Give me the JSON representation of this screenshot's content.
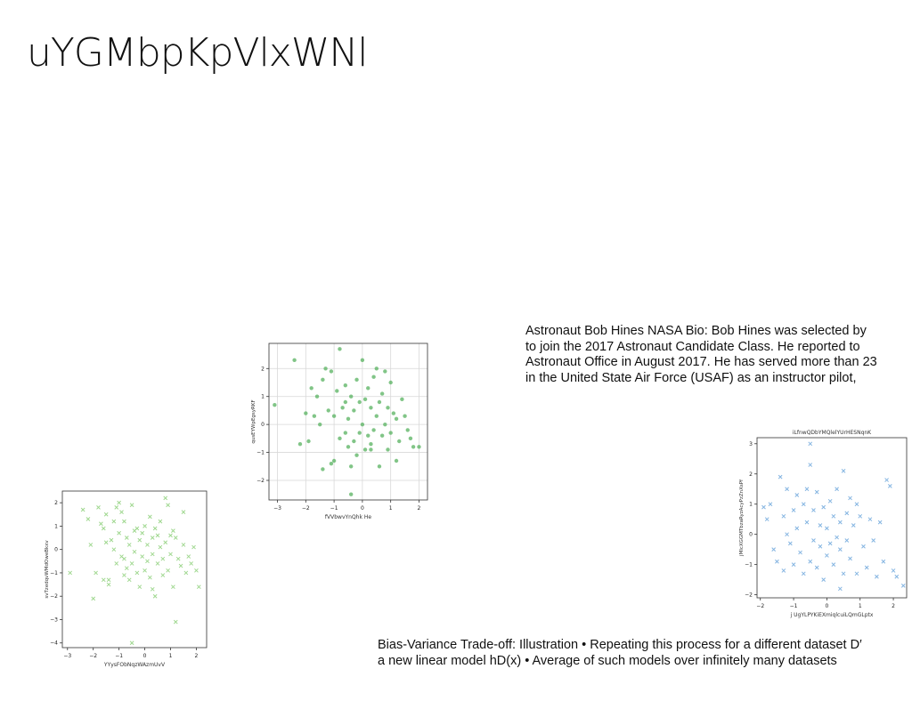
{
  "slide": {
    "title": "uYGMbpKpVlxWNl"
  },
  "text_blocks": {
    "astronaut": [
      "Astronaut Bob Hines NASA Bio: Bob Hines was selected by",
      "to join the 2017 Astronaut Candidate Class. He reported to",
      "Astronaut Office in August 2017. He has served more than 23",
      "in the United State Air Force (USAF) as an instructor pilot,"
    ],
    "bias_variance": [
      "Bias-Variance Trade-off: Illustration • Repeating this process for a different dataset D′",
      "a new linear model hD(x) • Average of such models over infinitely many datasets"
    ]
  },
  "chart_data": [
    {
      "type": "scatter",
      "title": "",
      "xlabel": "YYysFObNqzWAzmUvV",
      "ylabel": "svTzedqvWMdOweBkxv",
      "marker": "x",
      "color": "#8fd17c",
      "xlim": [
        -3.2,
        2.4
      ],
      "ylim": [
        -4.2,
        2.5
      ],
      "xticks": [
        -3,
        -2,
        -1,
        0,
        1,
        2
      ],
      "yticks": [
        -4,
        -3,
        -2,
        -1,
        0,
        1,
        2
      ],
      "grid": false,
      "points": [
        [
          -2.9,
          -1.0
        ],
        [
          -2.4,
          1.7
        ],
        [
          -2.2,
          1.3
        ],
        [
          -2.1,
          0.2
        ],
        [
          -2.0,
          -2.1
        ],
        [
          -1.9,
          -1.0
        ],
        [
          -1.8,
          1.8
        ],
        [
          -1.7,
          1.1
        ],
        [
          -1.6,
          0.9
        ],
        [
          -1.5,
          1.5
        ],
        [
          -1.5,
          0.3
        ],
        [
          -1.4,
          -1.5
        ],
        [
          -1.4,
          -1.3
        ],
        [
          -1.3,
          0.4
        ],
        [
          -1.2,
          1.2
        ],
        [
          -1.2,
          0.0
        ],
        [
          -1.1,
          1.8
        ],
        [
          -1.1,
          -0.6
        ],
        [
          -1.0,
          2.0
        ],
        [
          -1.0,
          0.7
        ],
        [
          -0.9,
          1.6
        ],
        [
          -0.9,
          -0.3
        ],
        [
          -0.8,
          1.2
        ],
        [
          -0.8,
          -1.1
        ],
        [
          -0.7,
          0.5
        ],
        [
          -0.7,
          -0.8
        ],
        [
          -0.6,
          0.2
        ],
        [
          -0.6,
          -1.3
        ],
        [
          -0.5,
          1.9
        ],
        [
          -0.5,
          -0.6
        ],
        [
          -0.4,
          0.8
        ],
        [
          -0.4,
          -0.1
        ],
        [
          -0.3,
          -1.0
        ],
        [
          -0.3,
          0.9
        ],
        [
          -0.2,
          0.4
        ],
        [
          -0.2,
          -1.6
        ],
        [
          -0.1,
          -0.3
        ],
        [
          -0.1,
          0.7
        ],
        [
          0.0,
          1.0
        ],
        [
          0.0,
          -0.9
        ],
        [
          0.1,
          0.2
        ],
        [
          0.1,
          -0.5
        ],
        [
          0.2,
          1.4
        ],
        [
          0.2,
          -1.2
        ],
        [
          0.3,
          0.5
        ],
        [
          0.3,
          -0.2
        ],
        [
          0.4,
          0.9
        ],
        [
          0.4,
          -2.0
        ],
        [
          0.5,
          0.6
        ],
        [
          0.5,
          -0.6
        ],
        [
          0.6,
          1.2
        ],
        [
          0.6,
          0.1
        ],
        [
          0.7,
          -0.4
        ],
        [
          0.7,
          -1.1
        ],
        [
          0.8,
          2.2
        ],
        [
          0.8,
          0.3
        ],
        [
          0.9,
          1.9
        ],
        [
          0.9,
          -0.9
        ],
        [
          1.0,
          0.6
        ],
        [
          1.0,
          -0.2
        ],
        [
          1.1,
          -1.6
        ],
        [
          1.1,
          0.8
        ],
        [
          1.2,
          -3.1
        ],
        [
          1.2,
          0.5
        ],
        [
          1.3,
          -0.4
        ],
        [
          1.4,
          -0.7
        ],
        [
          1.5,
          1.6
        ],
        [
          1.5,
          0.2
        ],
        [
          1.6,
          -1.0
        ],
        [
          1.7,
          -0.3
        ],
        [
          1.8,
          -0.6
        ],
        [
          1.9,
          0.1
        ],
        [
          2.0,
          -0.9
        ],
        [
          2.1,
          -1.6
        ],
        [
          -0.5,
          -4.0
        ],
        [
          -1.6,
          -1.3
        ],
        [
          0.3,
          -1.7
        ],
        [
          -0.8,
          -0.4
        ]
      ]
    },
    {
      "type": "scatter",
      "title": "",
      "xlabel": "fVVbwvYnQhk He",
      "ylabel": "qusEYWpEgsyRKF",
      "marker": "o",
      "color": "#57b15f",
      "xlim": [
        -3.3,
        2.3
      ],
      "ylim": [
        -2.7,
        2.9
      ],
      "xticks": [
        -3,
        -2,
        -1,
        0,
        1,
        2
      ],
      "yticks": [
        -2,
        -1,
        0,
        1,
        2
      ],
      "grid": true,
      "points": [
        [
          -3.1,
          0.7
        ],
        [
          -2.4,
          2.3
        ],
        [
          -2.2,
          -0.7
        ],
        [
          -2.0,
          0.4
        ],
        [
          -1.9,
          -0.6
        ],
        [
          -1.8,
          1.3
        ],
        [
          -1.7,
          0.3
        ],
        [
          -1.6,
          1.0
        ],
        [
          -1.5,
          0.0
        ],
        [
          -1.4,
          -1.6
        ],
        [
          -1.4,
          1.6
        ],
        [
          -1.3,
          2.0
        ],
        [
          -1.2,
          0.5
        ],
        [
          -1.1,
          1.9
        ],
        [
          -1.0,
          -1.3
        ],
        [
          -1.0,
          0.3
        ],
        [
          -0.9,
          1.2
        ],
        [
          -0.8,
          -0.5
        ],
        [
          -0.8,
          2.7
        ],
        [
          -0.7,
          0.6
        ],
        [
          -0.6,
          -0.3
        ],
        [
          -0.6,
          1.4
        ],
        [
          -0.5,
          -0.8
        ],
        [
          -0.5,
          0.2
        ],
        [
          -0.4,
          1.0
        ],
        [
          -0.4,
          -1.5
        ],
        [
          -0.3,
          0.5
        ],
        [
          -0.3,
          -0.6
        ],
        [
          -0.2,
          1.6
        ],
        [
          -0.2,
          -1.1
        ],
        [
          -0.1,
          0.8
        ],
        [
          -0.1,
          -0.3
        ],
        [
          0.0,
          2.3
        ],
        [
          0.0,
          0.0
        ],
        [
          0.1,
          -0.9
        ],
        [
          0.1,
          0.9
        ],
        [
          0.2,
          -0.4
        ],
        [
          0.2,
          1.3
        ],
        [
          0.3,
          0.6
        ],
        [
          0.3,
          -0.7
        ],
        [
          0.4,
          1.7
        ],
        [
          0.4,
          -0.2
        ],
        [
          0.5,
          2.0
        ],
        [
          0.5,
          0.3
        ],
        [
          0.6,
          -1.5
        ],
        [
          0.6,
          0.8
        ],
        [
          0.7,
          -0.4
        ],
        [
          0.7,
          1.1
        ],
        [
          0.8,
          0.0
        ],
        [
          0.9,
          -0.9
        ],
        [
          0.9,
          0.6
        ],
        [
          1.0,
          1.5
        ],
        [
          1.0,
          -0.3
        ],
        [
          1.1,
          0.4
        ],
        [
          1.2,
          -1.3
        ],
        [
          1.2,
          0.2
        ],
        [
          1.3,
          -0.6
        ],
        [
          1.4,
          0.9
        ],
        [
          1.5,
          0.3
        ],
        [
          1.6,
          -0.2
        ],
        [
          1.7,
          -0.5
        ],
        [
          1.8,
          -0.8
        ],
        [
          2.0,
          -0.8
        ],
        [
          -0.4,
          -2.5
        ],
        [
          -1.1,
          -1.4
        ],
        [
          0.3,
          -0.9
        ],
        [
          -0.6,
          0.8
        ],
        [
          0.8,
          1.9
        ]
      ]
    },
    {
      "type": "scatter",
      "title": "iLfnwQDbYMQlelYUrHESNqnK",
      "xlabel": "j UgYLPYKiEXmiqlcuiLQmGLptx",
      "ylabel": "jMlcXGGMTbzaRyzAcyPzZnXsPf",
      "marker": "x",
      "color": "#6fa8dc",
      "xlim": [
        -2.1,
        2.4
      ],
      "ylim": [
        -2.1,
        3.2
      ],
      "xticks": [
        -2,
        -1,
        0,
        1,
        2
      ],
      "yticks": [
        -2,
        -1,
        0,
        1,
        2,
        3
      ],
      "grid": false,
      "points": [
        [
          -1.9,
          0.9
        ],
        [
          -1.8,
          0.5
        ],
        [
          -1.7,
          1.0
        ],
        [
          -1.6,
          -0.5
        ],
        [
          -1.5,
          -0.9
        ],
        [
          -1.4,
          1.9
        ],
        [
          -1.3,
          0.6
        ],
        [
          -1.3,
          -1.2
        ],
        [
          -1.2,
          1.5
        ],
        [
          -1.1,
          -0.3
        ],
        [
          -1.0,
          0.8
        ],
        [
          -1.0,
          -1.0
        ],
        [
          -0.9,
          1.3
        ],
        [
          -0.9,
          0.2
        ],
        [
          -0.8,
          -0.6
        ],
        [
          -0.7,
          1.0
        ],
        [
          -0.7,
          -1.3
        ],
        [
          -0.6,
          0.4
        ],
        [
          -0.6,
          1.5
        ],
        [
          -0.5,
          -0.9
        ],
        [
          -0.5,
          2.3
        ],
        [
          -0.4,
          0.8
        ],
        [
          -0.4,
          -0.2
        ],
        [
          -0.3,
          1.4
        ],
        [
          -0.3,
          -1.1
        ],
        [
          -0.2,
          0.3
        ],
        [
          -0.2,
          -0.4
        ],
        [
          -0.1,
          0.9
        ],
        [
          -0.1,
          -1.5
        ],
        [
          0.0,
          0.2
        ],
        [
          0.0,
          -0.7
        ],
        [
          0.1,
          1.1
        ],
        [
          0.1,
          -0.3
        ],
        [
          0.2,
          0.6
        ],
        [
          0.2,
          -1.0
        ],
        [
          0.3,
          -0.1
        ],
        [
          0.3,
          1.5
        ],
        [
          0.4,
          0.4
        ],
        [
          0.4,
          -0.5
        ],
        [
          0.5,
          2.1
        ],
        [
          0.5,
          -1.3
        ],
        [
          0.6,
          0.7
        ],
        [
          0.6,
          -0.2
        ],
        [
          0.7,
          1.2
        ],
        [
          0.7,
          -0.8
        ],
        [
          0.8,
          0.3
        ],
        [
          0.9,
          -1.3
        ],
        [
          0.9,
          1.0
        ],
        [
          1.0,
          0.6
        ],
        [
          1.1,
          -0.4
        ],
        [
          1.2,
          -1.1
        ],
        [
          1.3,
          0.5
        ],
        [
          1.4,
          -0.2
        ],
        [
          1.5,
          -1.4
        ],
        [
          1.6,
          0.4
        ],
        [
          1.7,
          -0.9
        ],
        [
          1.8,
          1.8
        ],
        [
          1.9,
          1.6
        ],
        [
          2.0,
          -1.2
        ],
        [
          2.1,
          -1.4
        ],
        [
          2.3,
          -1.7
        ],
        [
          -0.5,
          3.0
        ],
        [
          0.4,
          -1.8
        ],
        [
          -1.2,
          0.0
        ]
      ]
    }
  ]
}
